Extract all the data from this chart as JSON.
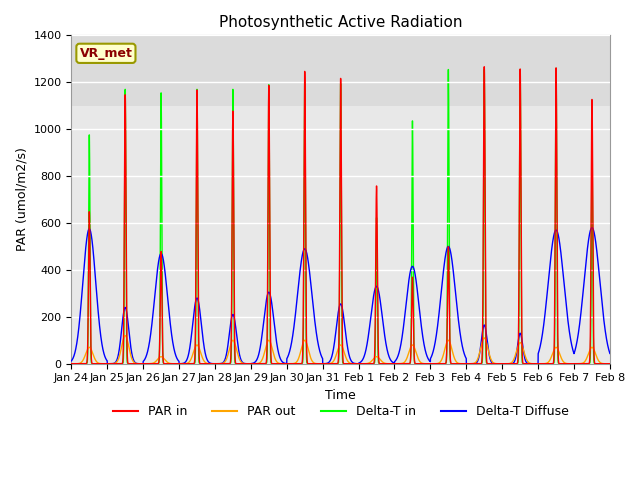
{
  "title": "Photosynthetic Active Radiation",
  "ylabel": "PAR (umol/m2/s)",
  "xlabel": "Time",
  "label_text": "VR_met",
  "ylim": [
    0,
    1400
  ],
  "xtick_labels": [
    "Jan 24",
    "Jan 25",
    "Jan 26",
    "Jan 27",
    "Jan 28",
    "Jan 29",
    "Jan 30",
    "Jan 31",
    "Feb 1",
    "Feb 2",
    "Feb 3",
    "Feb 4",
    "Feb 5",
    "Feb 6",
    "Feb 7",
    "Feb 8"
  ],
  "legend_labels": [
    "PAR in",
    "PAR out",
    "Delta-T in",
    "Delta-T Diffuse"
  ],
  "legend_colors": [
    "#cc0000",
    "#ff9900",
    "#00cc00",
    "#0000cc"
  ],
  "par_in_peaks": [
    650,
    1150,
    480,
    1170,
    1080,
    1190,
    1250,
    1220,
    760,
    370,
    500,
    1270,
    1260,
    1265,
    1130
  ],
  "par_out_peaks": [
    70,
    120,
    30,
    80,
    100,
    100,
    100,
    80,
    30,
    80,
    100,
    110,
    90,
    70,
    70
  ],
  "delta_t_peaks": [
    980,
    1175,
    1160,
    1175,
    1175,
    1195,
    1200,
    1200,
    625,
    1040,
    1260,
    1260,
    1260,
    1265,
    900
  ],
  "delta_diff_peaks": [
    575,
    240,
    470,
    280,
    210,
    305,
    490,
    255,
    330,
    415,
    500,
    165,
    130,
    570,
    580
  ],
  "delta_diff_widths": [
    0.18,
    0.1,
    0.18,
    0.12,
    0.1,
    0.14,
    0.2,
    0.12,
    0.16,
    0.18,
    0.2,
    0.08,
    0.07,
    0.22,
    0.22
  ],
  "n_days": 15,
  "pts_per_day": 288
}
